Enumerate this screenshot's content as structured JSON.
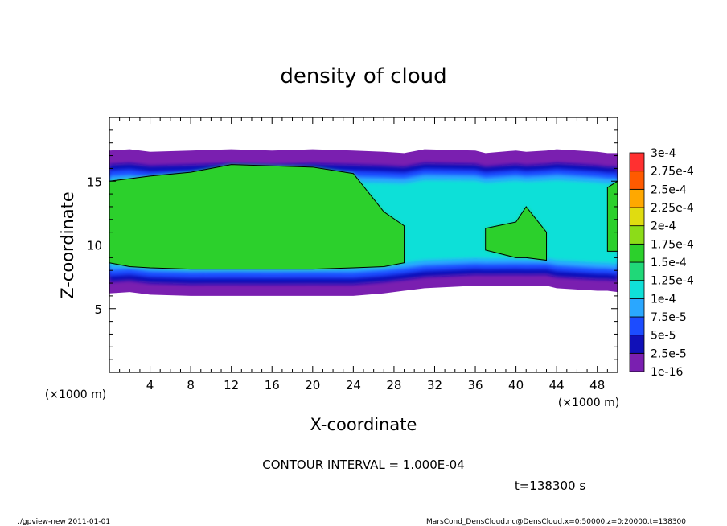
{
  "chart_data": {
    "type": "heatmap",
    "title": "density of cloud",
    "xlabel": "X-coordinate",
    "ylabel": "Z-coordinate",
    "x_unit": "(×1000 m)",
    "y_unit": "(×1000 m)",
    "xlim": [
      0,
      50
    ],
    "ylim": [
      0,
      20
    ],
    "x_ticks": [
      4,
      8,
      12,
      16,
      20,
      24,
      28,
      32,
      36,
      40,
      44,
      48
    ],
    "y_ticks": [
      5,
      10,
      15
    ],
    "x_tick_labels": [
      "4",
      "8",
      "12",
      "16",
      "20",
      "24",
      "28",
      "32",
      "36",
      "40",
      "44",
      "48"
    ],
    "y_tick_labels": [
      "5",
      "10",
      "15"
    ],
    "colorbar": {
      "labels": [
        "1e-16",
        "2.5e-5",
        "5e-5",
        "7.5e-5",
        "1e-4",
        "1.25e-4",
        "1.5e-4",
        "1.75e-4",
        "2e-4",
        "2.25e-4",
        "2.5e-4",
        "2.75e-4",
        "3e-4"
      ],
      "colors": [
        "#7a1fb0",
        "#1010b8",
        "#1c4cff",
        "#2aa7ff",
        "#10e0d8",
        "#20d878",
        "#2cd02c",
        "#8cdc18",
        "#e0dc10",
        "#ffa800",
        "#ff5a00",
        "#ff3030",
        "#ff8c8c"
      ]
    },
    "cloud_profile": [
      {
        "x": 0,
        "top": 17.4,
        "bottom": 6.2,
        "core_top": 15.0,
        "core_bottom": 8.6
      },
      {
        "x": 2,
        "top": 17.5,
        "bottom": 6.3,
        "core_top": 15.2,
        "core_bottom": 8.3
      },
      {
        "x": 4,
        "top": 17.3,
        "bottom": 6.1,
        "core_top": 15.4,
        "core_bottom": 8.2
      },
      {
        "x": 8,
        "top": 17.4,
        "bottom": 6.0,
        "core_top": 15.7,
        "core_bottom": 8.1
      },
      {
        "x": 12,
        "top": 17.5,
        "bottom": 6.0,
        "core_top": 16.3,
        "core_bottom": 8.1
      },
      {
        "x": 16,
        "top": 17.4,
        "bottom": 6.0,
        "core_top": 16.2,
        "core_bottom": 8.1
      },
      {
        "x": 20,
        "top": 17.5,
        "bottom": 6.0,
        "core_top": 16.1,
        "core_bottom": 8.1
      },
      {
        "x": 24,
        "top": 17.4,
        "bottom": 6.0,
        "core_top": 15.6,
        "core_bottom": 8.2
      },
      {
        "x": 27,
        "top": 17.3,
        "bottom": 6.2,
        "core_top": 12.6,
        "core_bottom": 8.3
      },
      {
        "x": 29,
        "top": 17.2,
        "bottom": 6.4,
        "core_top": 11.5,
        "core_bottom": 8.6
      },
      {
        "x": 31,
        "top": 17.5,
        "bottom": 6.6,
        "core_top": 0,
        "core_bottom": 0
      },
      {
        "x": 36,
        "top": 17.4,
        "bottom": 6.8,
        "core_top": 0,
        "core_bottom": 0
      },
      {
        "x": 37,
        "top": 17.2,
        "bottom": 6.8,
        "core_top": 11.3,
        "core_bottom": 9.6
      },
      {
        "x": 40,
        "top": 17.4,
        "bottom": 6.8,
        "core_top": 11.8,
        "core_bottom": 9.0
      },
      {
        "x": 41,
        "top": 17.3,
        "bottom": 6.8,
        "core_top": 13.0,
        "core_bottom": 9.0
      },
      {
        "x": 43,
        "top": 17.4,
        "bottom": 6.8,
        "core_top": 11.0,
        "core_bottom": 8.8
      },
      {
        "x": 44,
        "top": 17.5,
        "bottom": 6.6,
        "core_top": 0,
        "core_bottom": 0
      },
      {
        "x": 48,
        "top": 17.3,
        "bottom": 6.4,
        "core_top": 0,
        "core_bottom": 0
      },
      {
        "x": 49,
        "top": 17.2,
        "bottom": 6.4,
        "core_top": 14.5,
        "core_bottom": 9.5
      },
      {
        "x": 50,
        "top": 17.2,
        "bottom": 6.3,
        "core_top": 15.0,
        "core_bottom": 9.5
      }
    ]
  },
  "annotations": {
    "contour_interval": "CONTOUR INTERVAL = 1.000E-04",
    "time": "t=138300 s",
    "footer_left": "./gpview-new  2011-01-01",
    "footer_right": "MarsCond_DensCloud.nc@DensCloud,x=0:50000,z=0:20000,t=138300"
  }
}
